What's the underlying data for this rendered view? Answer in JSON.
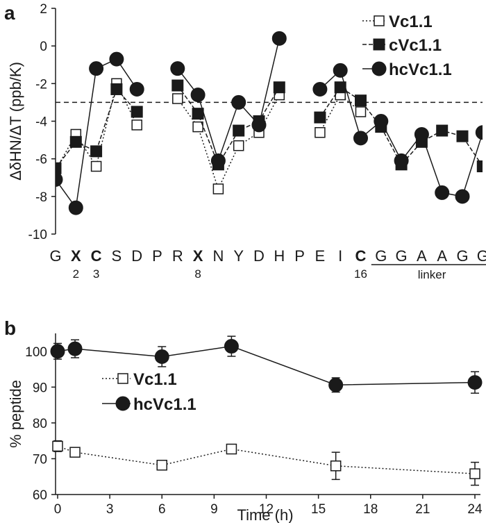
{
  "chart_data": [
    {
      "panel": "a",
      "type": "line",
      "ylabel": "ΔδHN/ΔT (ppb/K)",
      "ylim": [
        -10,
        2
      ],
      "yticks": [
        2,
        0,
        -2,
        -4,
        -6,
        -8,
        -10
      ],
      "reference_line": -3,
      "categories": [
        "G",
        "X",
        "C",
        "S",
        "D",
        "P",
        "R",
        "X",
        "N",
        "Y",
        "D",
        "H",
        "P",
        "E",
        "I",
        "C",
        "G",
        "G",
        "A",
        "A",
        "G",
        "G"
      ],
      "bold_categories": [
        1,
        2,
        7,
        15
      ],
      "residue_numbers": [
        {
          "index": 1,
          "label": "2"
        },
        {
          "index": 2,
          "label": "3"
        },
        {
          "index": 7,
          "label": "8"
        },
        {
          "index": 15,
          "label": "16"
        }
      ],
      "linker_label": "linker",
      "linker_range": [
        16,
        21
      ],
      "series": [
        {
          "name": "Vc1.1",
          "marker": "open-square",
          "line": "dotted",
          "values": [
            -6.6,
            -4.7,
            -6.4,
            -2.0,
            -4.2,
            null,
            -2.8,
            -4.3,
            -7.6,
            -5.3,
            -4.6,
            -2.6,
            null,
            -4.6,
            -2.6,
            -3.5,
            null,
            null,
            null,
            null,
            null,
            null
          ]
        },
        {
          "name": "cVc1.1",
          "marker": "filled-square",
          "line": "dashed",
          "values": [
            -6.5,
            -5.1,
            -5.6,
            -2.3,
            -3.5,
            null,
            -2.1,
            -3.6,
            -6.3,
            -4.5,
            -4.0,
            -2.2,
            null,
            -3.8,
            -2.2,
            -2.9,
            -4.3,
            -6.3,
            -5.1,
            -4.5,
            -4.8,
            -6.4
          ]
        },
        {
          "name": "hcVc1.1",
          "marker": "filled-circle",
          "line": "solid",
          "values": [
            -7.1,
            -8.6,
            -1.2,
            -0.7,
            -2.3,
            null,
            -1.2,
            -2.6,
            -6.1,
            -3.0,
            -4.2,
            0.4,
            null,
            -2.3,
            -1.3,
            -4.9,
            -4.0,
            -6.1,
            -4.7,
            -7.8,
            -8.0,
            -4.6
          ]
        }
      ]
    },
    {
      "panel": "b",
      "type": "line",
      "xlabel": "Time (h)",
      "ylabel": "% peptide",
      "xlim": [
        0,
        24
      ],
      "ylim": [
        60,
        105
      ],
      "xticks": [
        0,
        3,
        6,
        9,
        12,
        15,
        18,
        21,
        24
      ],
      "yticks": [
        60,
        70,
        80,
        90,
        100
      ],
      "series": [
        {
          "name": "Vc1.1",
          "marker": "open-square",
          "line": "dotted",
          "x": [
            0,
            1,
            6,
            10,
            16,
            24
          ],
          "y": [
            73.5,
            71.8,
            68.2,
            72.7,
            68.0,
            65.8
          ],
          "err": [
            1.5,
            1.2,
            1.0,
            1.2,
            3.8,
            3.2
          ]
        },
        {
          "name": "hcVc1.1",
          "marker": "filled-circle",
          "line": "solid",
          "x": [
            0,
            1,
            6,
            10,
            16,
            24
          ],
          "y": [
            100.0,
            100.7,
            98.5,
            101.4,
            90.6,
            91.3
          ],
          "err": [
            2.2,
            2.5,
            2.8,
            2.8,
            2.0,
            3.0
          ]
        }
      ]
    }
  ]
}
